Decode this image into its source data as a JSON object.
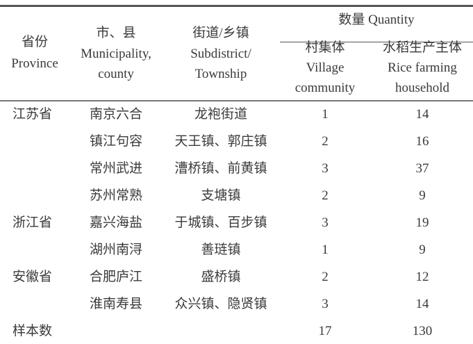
{
  "header": {
    "province": {
      "zh": "省份",
      "en": "Province"
    },
    "municipality": {
      "zh": "市、县",
      "en1": "Municipality,",
      "en2": "county"
    },
    "township": {
      "zh": "街道/乡镇",
      "en1": "Subdistrict/",
      "en2": "Township"
    },
    "quantity": "数量 Quantity",
    "village": {
      "zh": "村集体",
      "en1": "Village",
      "en2": "community"
    },
    "rice": {
      "zh": "水稻生产主体",
      "en1": "Rice farming",
      "en2": "household"
    }
  },
  "rows": [
    {
      "province": "江苏省",
      "city": "南京六合",
      "township": "龙袍街道",
      "village": "1",
      "rice": "14"
    },
    {
      "province": "",
      "city": "镇江句容",
      "township": "天王镇、郭庄镇",
      "village": "2",
      "rice": "16"
    },
    {
      "province": "",
      "city": "常州武进",
      "township": "漕桥镇、前黄镇",
      "village": "3",
      "rice": "37"
    },
    {
      "province": "",
      "city": "苏州常熟",
      "township": "支塘镇",
      "village": "2",
      "rice": "9"
    },
    {
      "province": "浙江省",
      "city": "嘉兴海盐",
      "township": "于城镇、百步镇",
      "village": "3",
      "rice": "19"
    },
    {
      "province": "",
      "city": "湖州南浔",
      "township": "善琏镇",
      "village": "1",
      "rice": "9"
    },
    {
      "province": "安徽省",
      "city": "合肥庐江",
      "township": "盛桥镇",
      "village": "2",
      "rice": "12"
    },
    {
      "province": "",
      "city": "淮南寿县",
      "township": "众兴镇、隐贤镇",
      "village": "3",
      "rice": "14"
    }
  ],
  "total": {
    "label": "样本数",
    "village": "17",
    "rice": "130"
  }
}
